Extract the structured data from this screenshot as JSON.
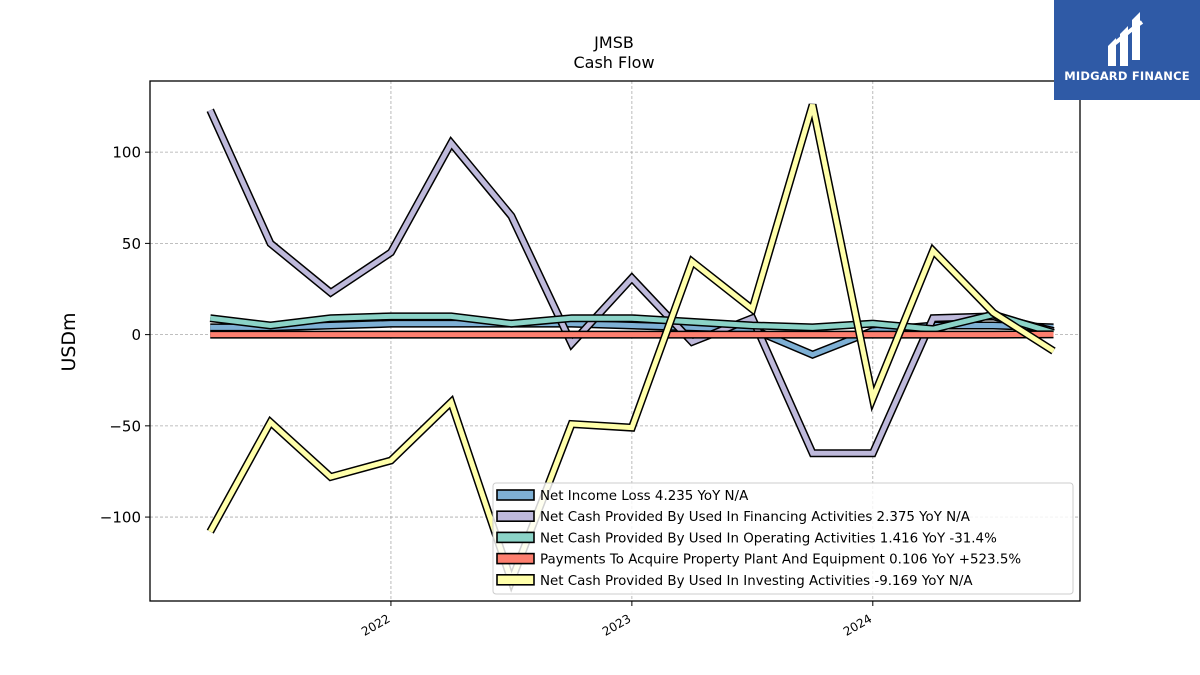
{
  "chart_data": {
    "type": "line",
    "title": "JMSB",
    "subtitle": "Cash Flow",
    "ylabel": "USDm",
    "xlabel": "",
    "ylim": [
      -146,
      139
    ],
    "xlim": [
      2021.0,
      2024.86
    ],
    "yticks": [
      100,
      50,
      0,
      -50,
      -100
    ],
    "ytick_labels": [
      "100",
      "50",
      "0",
      "−50",
      "−100"
    ],
    "xticks": [
      2022,
      2023,
      2024
    ],
    "xtick_labels": [
      "2022",
      "2023",
      "2024"
    ],
    "grid": true,
    "legend_position": "lower-right",
    "x": [
      2021.25,
      2021.5,
      2021.75,
      2022.0,
      2022.25,
      2022.5,
      2022.75,
      2023.0,
      2023.25,
      2023.5,
      2023.75,
      2024.0,
      2024.25,
      2024.5,
      2024.75
    ],
    "series": [
      {
        "name": "Net Income Loss",
        "legend_label": "Net Income Loss  4.235 YoY N/A",
        "color": "#7eb0d5",
        "values": [
          4,
          4,
          5,
          6,
          6,
          6,
          6,
          5,
          4,
          3,
          -11,
          2,
          5,
          5,
          4
        ]
      },
      {
        "name": "Net Cash Provided By Used In Financing Activities",
        "legend_label": "Net Cash Provided By Used In Financing Activities  2.375 YoY N/A",
        "color": "#beb9db",
        "values": [
          123,
          50,
          23,
          45,
          105,
          65,
          -5,
          31,
          -4,
          9,
          -65,
          -65,
          9,
          10,
          2
        ]
      },
      {
        "name": "Net Cash Provided By Used In Operating Activities",
        "legend_label": "Net Cash Provided By Used In Operating Activities  1.416 YoY -31.4%",
        "color": "#8bd3c7",
        "values": [
          9,
          5,
          9,
          10,
          10,
          6,
          9,
          9,
          7,
          5,
          4,
          6,
          3,
          11,
          1
        ]
      },
      {
        "name": "Payments To Acquire Property Plant And Equipment",
        "legend_label": "Payments To Acquire Property Plant And Equipment  0.106 YoY +523.5%",
        "color": "#fd7f6f",
        "values": [
          0,
          0,
          0,
          0,
          0,
          0,
          0,
          0,
          0,
          0,
          0,
          0,
          0,
          0,
          0.1
        ]
      },
      {
        "name": "Net Cash Provided By Used In Investing Activities",
        "legend_label": "Net Cash Provided By Used In Investing Activities  -9.169 YoY N/A",
        "color": "#ffffaa",
        "values": [
          -108,
          -48,
          -78,
          -69,
          -37,
          -135,
          -49,
          -51,
          40,
          14,
          126,
          -35,
          46,
          12,
          -9
        ]
      }
    ]
  },
  "logo": {
    "text": "MIDGARD FINANCE",
    "color": "#2f5aa6"
  }
}
